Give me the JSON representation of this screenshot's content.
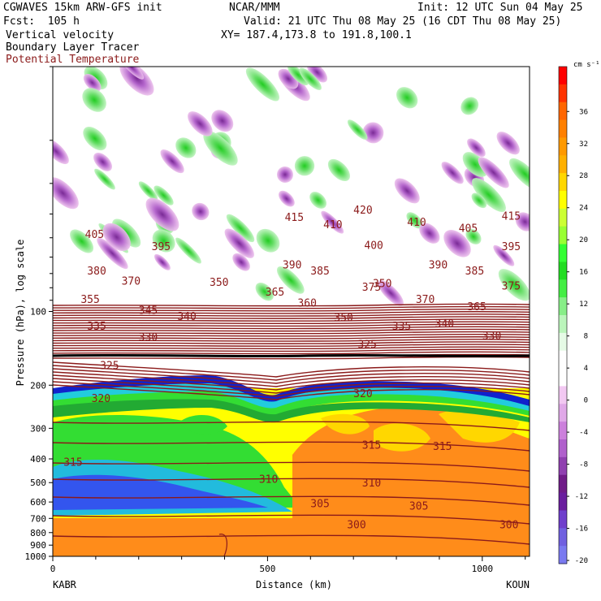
{
  "header": {
    "model": "CGWAVES 15km ARW-GFS init",
    "org": "NCAR/MMM",
    "init": "Init: 12 UTC Sun 04 May 25",
    "fcst": "Fcst:  105 h",
    "valid": "Valid: 21 UTC Thu 08 May 25 (16 CDT Thu 08 May 25)",
    "field1": "Vertical velocity",
    "xy": "XY= 187.4,173.8 to 191.8,100.1",
    "field2": "Boundary Layer Tracer",
    "field3": "Potential Temperature"
  },
  "colors": {
    "contour": "#8b1a1a",
    "title3": "#8b1a1a"
  },
  "chart_data": {
    "type": "heatmap",
    "ylabel": "Pressure (hPa), log scale",
    "xlabel": "Distance (km)",
    "x_start_label": "KABR",
    "x_end_label": "KOUN",
    "xlim": [
      0,
      1110
    ],
    "ylim": [
      1000,
      10
    ],
    "yscale": "log",
    "x_ticks": [
      0,
      500,
      1000
    ],
    "y_ticks": [
      100,
      200,
      300,
      400,
      500,
      600,
      700,
      800,
      900,
      1000
    ],
    "colorbar": {
      "unit": "cm s⁻¹",
      "labels": [
        "36",
        "32",
        "28",
        "24",
        "20",
        "16",
        "12",
        "8",
        "4",
        "0",
        "-4",
        "-8",
        "-12",
        "-16",
        "-20"
      ],
      "colors": [
        "#ff0000",
        "#ff3300",
        "#ff6600",
        "#ff8000",
        "#ff9900",
        "#ffb000",
        "#ffd700",
        "#ffff00",
        "#ccff33",
        "#99ff33",
        "#33ff33",
        "#22dd22",
        "#44ee44",
        "#88ee88",
        "#bbf5bb",
        "#e6fbe6",
        "#ffffff",
        "#ffffff",
        "#f2c8f2",
        "#e0a8e8",
        "#cc80dc",
        "#b060cc",
        "#9040b0",
        "#701c88",
        "#6a1e9e",
        "#6f3fcc",
        "#7060e0",
        "#7a7af0"
      ]
    },
    "theta_labels": [
      {
        "v": "405",
        "x": 75,
        "y": 130
      },
      {
        "v": "415",
        "x": 540,
        "y": 116
      },
      {
        "v": "420",
        "x": 700,
        "y": 110
      },
      {
        "v": "410",
        "x": 630,
        "y": 122
      },
      {
        "v": "410",
        "x": 825,
        "y": 120
      },
      {
        "v": "405",
        "x": 945,
        "y": 125
      },
      {
        "v": "415",
        "x": 1045,
        "y": 115
      },
      {
        "v": "395",
        "x": 230,
        "y": 140
      },
      {
        "v": "400",
        "x": 725,
        "y": 139
      },
      {
        "v": "395",
        "x": 1045,
        "y": 140
      },
      {
        "v": "380",
        "x": 80,
        "y": 160
      },
      {
        "v": "390",
        "x": 535,
        "y": 155
      },
      {
        "v": "390",
        "x": 875,
        "y": 155
      },
      {
        "v": "385",
        "x": 600,
        "y": 160
      },
      {
        "v": "385",
        "x": 960,
        "y": 160
      },
      {
        "v": "370",
        "x": 160,
        "y": 168
      },
      {
        "v": "350",
        "x": 365,
        "y": 169
      },
      {
        "v": "350",
        "x": 745,
        "y": 170
      },
      {
        "v": "375",
        "x": 720,
        "y": 173
      },
      {
        "v": "375",
        "x": 1045,
        "y": 172
      },
      {
        "v": "355",
        "x": 65,
        "y": 183
      },
      {
        "v": "365",
        "x": 495,
        "y": 177
      },
      {
        "v": "370",
        "x": 845,
        "y": 183
      },
      {
        "v": "360",
        "x": 570,
        "y": 186
      },
      {
        "v": "365",
        "x": 965,
        "y": 189
      },
      {
        "v": "345",
        "x": 200,
        "y": 192
      },
      {
        "v": "340",
        "x": 290,
        "y": 197
      },
      {
        "v": "350",
        "x": 655,
        "y": 198
      },
      {
        "v": "335",
        "x": 80,
        "y": 205
      },
      {
        "v": "335",
        "x": 790,
        "y": 205
      },
      {
        "v": "340",
        "x": 890,
        "y": 203
      },
      {
        "v": "330",
        "x": 200,
        "y": 214
      },
      {
        "v": "330",
        "x": 1000,
        "y": 213
      },
      {
        "v": "325",
        "x": 710,
        "y": 220
      },
      {
        "v": "325",
        "x": 110,
        "y": 237
      },
      {
        "v": "320",
        "x": 90,
        "y": 264
      },
      {
        "v": "320",
        "x": 700,
        "y": 260
      },
      {
        "v": "315",
        "x": 25,
        "y": 316
      },
      {
        "v": "315",
        "x": 720,
        "y": 302
      },
      {
        "v": "315",
        "x": 885,
        "y": 303
      },
      {
        "v": "310",
        "x": 480,
        "y": 330
      },
      {
        "v": "310",
        "x": 720,
        "y": 333
      },
      {
        "v": "305",
        "x": 600,
        "y": 350
      },
      {
        "v": "305",
        "x": 830,
        "y": 352
      },
      {
        "v": "300",
        "x": 685,
        "y": 367
      },
      {
        "v": "300",
        "x": 1040,
        "y": 367
      }
    ]
  }
}
